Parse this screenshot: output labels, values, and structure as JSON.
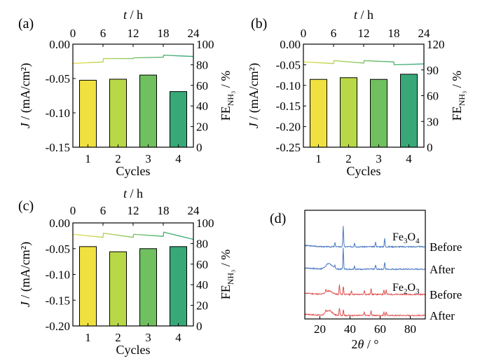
{
  "chart_data": [
    {
      "panel": "(a)",
      "type": "bar",
      "top_axis": {
        "label_var": "t",
        "label_unit": " / h",
        "ticks": [
          "0",
          "6",
          "12",
          "18",
          "24"
        ],
        "range": [
          0,
          24
        ]
      },
      "left_axis": {
        "label": "J / (mA/cm²)",
        "ticks": [
          "0.00",
          "-0.05",
          "-0.10",
          "-0.15"
        ],
        "range": [
          -0.15,
          0.0
        ]
      },
      "right_axis": {
        "label_main": "FE",
        "label_sub": "NH₃",
        "label_unit": " / %",
        "ticks": [
          "0",
          "20",
          "40",
          "60",
          "80",
          "100"
        ],
        "range": [
          0,
          100
        ]
      },
      "xlabel": "Cycles",
      "categories": [
        "1",
        "2",
        "3",
        "4"
      ],
      "series": [
        {
          "values": [
            65,
            66,
            70,
            54
          ]
        }
      ],
      "current_trace": {
        "t": [
          0,
          6,
          6.1,
          12,
          12.1,
          18,
          18.1,
          24
        ],
        "J": [
          -0.028,
          -0.026,
          -0.021,
          -0.021,
          -0.02,
          -0.019,
          -0.016,
          -0.018
        ]
      }
    },
    {
      "panel": "(b)",
      "type": "bar",
      "top_axis": {
        "label_var": "t",
        "label_unit": " / h",
        "ticks": [
          "0",
          "6",
          "12",
          "18",
          "24"
        ],
        "range": [
          0,
          24
        ]
      },
      "left_axis": {
        "label": "J / (mA/cm²)",
        "ticks": [
          "0.00",
          "-0.05",
          "-0.10",
          "-0.15",
          "-0.20",
          "-0.25"
        ],
        "range": [
          -0.25,
          0.0
        ]
      },
      "right_axis": {
        "label_main": "FE",
        "label_sub": "NH₃",
        "label_unit": " / %",
        "ticks": [
          "0",
          "30",
          "60",
          "90",
          "120"
        ],
        "range": [
          0,
          120
        ]
      },
      "xlabel": "Cycles",
      "categories": [
        "1",
        "2",
        "3",
        "4"
      ],
      "series": [
        {
          "values": [
            79,
            81,
            79,
            85
          ]
        }
      ],
      "current_trace": {
        "t": [
          0,
          6,
          6.1,
          12,
          12.1,
          18,
          18.1,
          24
        ],
        "J": [
          -0.043,
          -0.047,
          -0.04,
          -0.046,
          -0.04,
          -0.043,
          -0.05,
          -0.048
        ]
      }
    },
    {
      "panel": "(c)",
      "type": "bar",
      "top_axis": {
        "label_var": "t",
        "label_unit": " / h",
        "ticks": [
          "0",
          "6",
          "12",
          "18",
          "24"
        ],
        "range": [
          0,
          24
        ]
      },
      "left_axis": {
        "label": "J / (mA/cm²)",
        "ticks": [
          "0.00",
          "-0.05",
          "-0.10",
          "-0.15",
          "-0.20"
        ],
        "range": [
          -0.2,
          0.0
        ]
      },
      "right_axis": {
        "label_main": "FE",
        "label_sub": "NH₃",
        "label_unit": " / %",
        "ticks": [
          "0",
          "20",
          "40",
          "60",
          "80",
          "100"
        ],
        "range": [
          0,
          100
        ]
      },
      "xlabel": "Cycles",
      "categories": [
        "1",
        "2",
        "3",
        "4"
      ],
      "series": [
        {
          "values": [
            77,
            72,
            75,
            77
          ]
        }
      ],
      "current_trace": {
        "t": [
          0,
          6,
          6.1,
          12,
          12.1,
          18,
          18.1,
          24
        ],
        "J": [
          -0.022,
          -0.028,
          -0.02,
          -0.028,
          -0.022,
          -0.026,
          -0.018,
          -0.032
        ]
      }
    },
    {
      "panel": "(d)",
      "type": "line",
      "xlabel_var": "2θ",
      "xlabel_unit": " / °",
      "x_ticks": [
        "20",
        "40",
        "60",
        "80"
      ],
      "xlim": [
        10,
        90
      ],
      "series": [
        {
          "name": "Before",
          "group": "Fe₃O₄",
          "color": "#4a78c2",
          "peaks": [
            [
              30,
              6
            ],
            [
              35.5,
              30
            ],
            [
              43,
              6
            ],
            [
              57,
              7
            ],
            [
              63,
              12
            ]
          ],
          "hump": [
            26,
            0
          ]
        },
        {
          "name": "After",
          "group": "Fe₃O₄",
          "color": "#4a78c2",
          "peaks": [
            [
              30,
              5
            ],
            [
              35.5,
              30
            ],
            [
              43,
              5
            ],
            [
              57,
              6
            ],
            [
              63,
              10
            ]
          ],
          "hump": [
            26,
            8
          ]
        },
        {
          "name": "Before",
          "group": "Fe₂O₃",
          "color": "#e05050",
          "peaks": [
            [
              24,
              4
            ],
            [
              33,
              14
            ],
            [
              35.6,
              12
            ],
            [
              41,
              5
            ],
            [
              49.5,
              6
            ],
            [
              54,
              9
            ],
            [
              62.5,
              7
            ],
            [
              64,
              7
            ]
          ],
          "hump": [
            26,
            5
          ]
        },
        {
          "name": "After",
          "group": "Fe₂O₃",
          "color": "#e05050",
          "peaks": [
            [
              24,
              3
            ],
            [
              33,
              11
            ],
            [
              35.6,
              9
            ],
            [
              49.5,
              5
            ],
            [
              54,
              7
            ],
            [
              62.5,
              5
            ],
            [
              64,
              5
            ]
          ],
          "hump": [
            26,
            7
          ]
        }
      ],
      "group_labels": [
        {
          "main": "Fe",
          "sub1": "3",
          "mid": "O",
          "sub2": "4"
        },
        {
          "main": "Fe",
          "sub1": "2",
          "mid": "O",
          "sub2": "3"
        }
      ]
    }
  ],
  "colors": {
    "bars": [
      "#f0e040",
      "#b8d848",
      "#70c060",
      "#38a878"
    ],
    "trace_gradient": [
      "#e8e050",
      "#a8d060",
      "#60b870",
      "#38a880"
    ]
  }
}
